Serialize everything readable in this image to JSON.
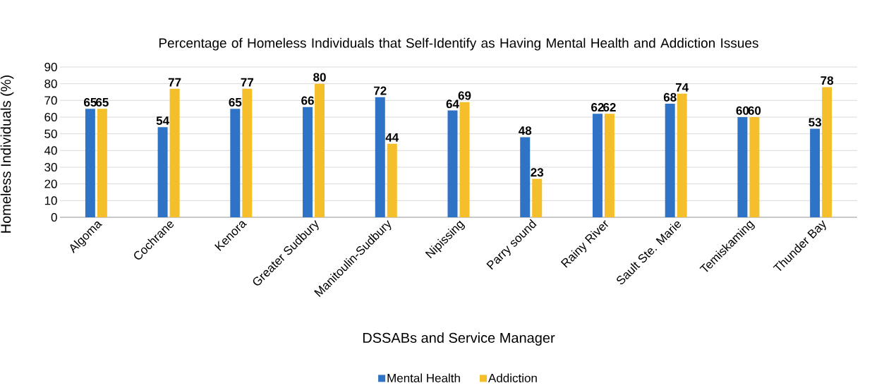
{
  "chart_data": {
    "type": "bar",
    "title": "Percentage of Homeless Individuals that Self-Identify as Having Mental Health and Addiction Issues",
    "xlabel": "DSSABs and Service Manager",
    "ylabel": "Homeless Individuals (%)",
    "categories": [
      "Algoma",
      "Cochrane",
      "Kenora",
      "Greater Sudbury",
      "Manitoulin-Sudbury",
      "Nipissing",
      "Parry sound",
      "Rainy River",
      "Sault Ste. Marie",
      "Temiskaming",
      "Thunder Bay"
    ],
    "series": [
      {
        "name": "Mental Health",
        "color": "#2e73c6",
        "values": [
          65,
          54,
          65,
          66,
          72,
          64,
          48,
          62,
          68,
          60,
          53
        ]
      },
      {
        "name": "Addiction",
        "color": "#f4bf2a",
        "values": [
          65,
          77,
          77,
          80,
          44,
          69,
          23,
          62,
          74,
          60,
          78
        ]
      }
    ],
    "ylim": [
      0,
      90
    ],
    "yticks": [
      0,
      10,
      20,
      30,
      40,
      50,
      60,
      70,
      80,
      90
    ],
    "grid": "y",
    "legend": "bottom",
    "data_labels": true
  }
}
